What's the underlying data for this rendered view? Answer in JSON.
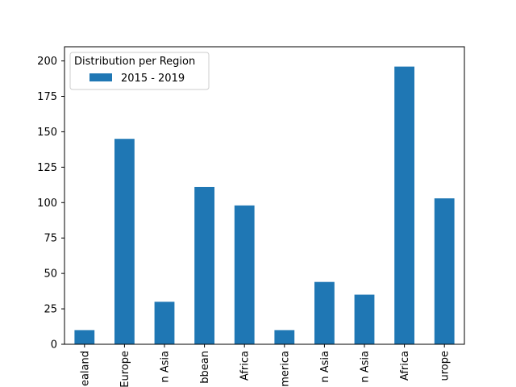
{
  "chart_data": {
    "type": "bar",
    "categories": [
      "Australia and New Zealand",
      "Central and Eastern Europe",
      "Eastern Asia",
      "Latin America and Caribbean",
      "Middle East and Northern Africa",
      "North America",
      "Southeastern Asia",
      "Southern Asia",
      "Sub-Saharan Africa",
      "Western Europe"
    ],
    "category_labels_visible": [
      "ealand",
      "Europe",
      "n Asia",
      "bbean",
      "Africa",
      "merica",
      "n Asia",
      "n Asia",
      "Africa",
      "urope"
    ],
    "series": [
      {
        "name": "2015 - 2019",
        "color": "#1f77b4",
        "values": [
          10,
          145,
          30,
          111,
          98,
          10,
          44,
          35,
          196,
          103
        ]
      }
    ],
    "ylim": [
      0,
      210
    ],
    "yticks": [
      0,
      25,
      50,
      75,
      100,
      125,
      150,
      175,
      200
    ],
    "grid": false,
    "legend": {
      "title": "Distribution per Region",
      "placement": "top-left"
    },
    "title": "",
    "xlabel": "",
    "ylabel": ""
  }
}
